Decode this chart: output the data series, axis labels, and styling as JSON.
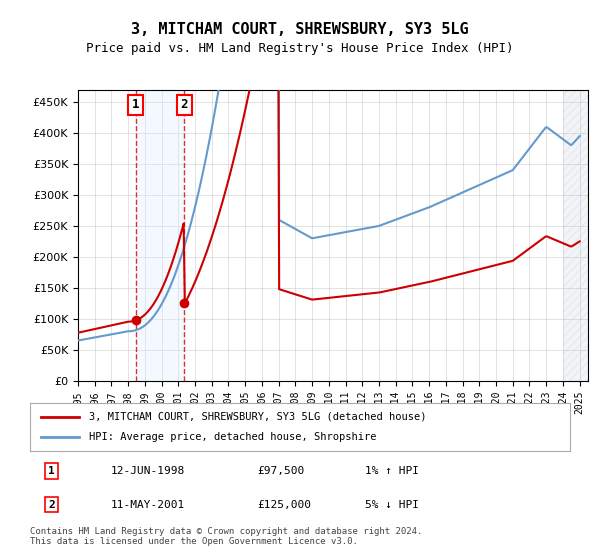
{
  "title": "3, MITCHAM COURT, SHREWSBURY, SY3 5LG",
  "subtitle": "Price paid vs. HM Land Registry's House Price Index (HPI)",
  "ylabel": "",
  "ylim": [
    0,
    470000
  ],
  "yticks": [
    0,
    50000,
    100000,
    150000,
    200000,
    250000,
    300000,
    350000,
    400000,
    450000
  ],
  "xlim_start": 1995.0,
  "xlim_end": 2025.5,
  "legend_line1": "3, MITCHAM COURT, SHREWSBURY, SY3 5LG (detached house)",
  "legend_line2": "HPI: Average price, detached house, Shropshire",
  "purchase1_date": 1998.45,
  "purchase1_price": 97500,
  "purchase1_label": "1",
  "purchase1_text": "12-JUN-1998    £97,500    1% ↑ HPI",
  "purchase2_date": 2001.36,
  "purchase2_price": 125000,
  "purchase2_label": "2",
  "purchase2_text": "11-MAY-2001    £125,000    5% ↓ HPI",
  "footer": "Contains HM Land Registry data © Crown copyright and database right 2024.\nThis data is licensed under the Open Government Licence v3.0.",
  "hpi_color": "#6699cc",
  "price_color": "#cc0000",
  "background_color": "#ffffff",
  "plot_bg_color": "#ffffff",
  "grid_color": "#cccccc",
  "shade_color": "#ddeeff",
  "hatch_color": "#aabbcc"
}
